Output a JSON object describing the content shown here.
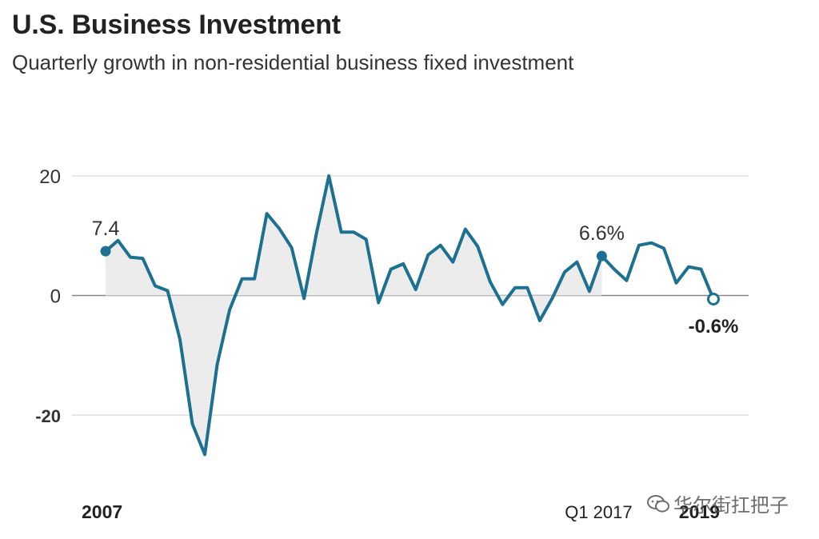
{
  "title": "U.S. Business Investment",
  "subtitle": "Quarterly growth in non-residential business fixed investment",
  "watermark": "华尔街扛把子",
  "colors": {
    "line": "#1c7090",
    "grid": "#cccccc",
    "zero": "#888888",
    "fill": "#ececec",
    "text": "#333333"
  },
  "chart_data": {
    "type": "line",
    "grid": true,
    "ylim": [
      -27,
      20
    ],
    "yticks": [
      {
        "value": 20,
        "label": "20",
        "bold": false
      },
      {
        "value": 0,
        "label": "0",
        "bold": false
      },
      {
        "value": -20,
        "label": "-20",
        "bold": true
      }
    ],
    "xlabels": [
      {
        "index": 0,
        "label": "2007",
        "bold": true
      },
      {
        "index": 40,
        "label": "Q1 2017",
        "bold": false
      },
      {
        "index": 48,
        "label": "2019",
        "bold": true
      }
    ],
    "series": [
      {
        "values": [
          7.4,
          9.2,
          6.4,
          6.2,
          1.6,
          0.8,
          -7.4,
          -21.5,
          -26.6,
          -11.5,
          -2.4,
          2.8,
          2.8,
          13.7,
          11.2,
          8.0,
          -0.5,
          10.4,
          20.0,
          10.6,
          10.6,
          9.4,
          -1.2,
          4.4,
          5.3,
          1.0,
          6.8,
          8.4,
          5.6,
          11.1,
          8.2,
          2.3,
          -1.5,
          1.3,
          1.3,
          -4.2,
          -0.5,
          3.9,
          5.6,
          0.7,
          6.6,
          4.4,
          2.5,
          8.4,
          8.8,
          7.9,
          2.1,
          4.8,
          4.4,
          -0.6
        ]
      }
    ],
    "annotations": [
      {
        "index": 0,
        "text": "7.4",
        "bold": false
      },
      {
        "index": 40,
        "text": "6.6%",
        "bold": false
      },
      {
        "index": 49,
        "text": "-0.6%",
        "bold": true
      }
    ]
  }
}
